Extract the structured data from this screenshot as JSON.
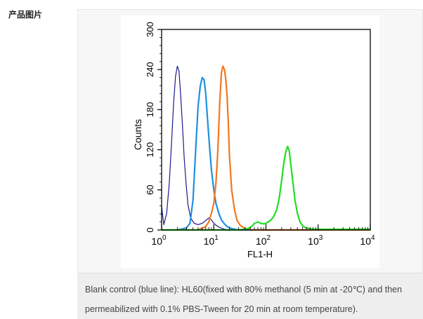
{
  "section_label": "产品图片",
  "caption": "Blank control (blue line): HL60(fixed with 80% methanol (5 min at -20℃) and then permeabilized with 0.1% PBS-Tween for 20 min at room temperature).",
  "chart_data": {
    "type": "line",
    "title": "",
    "xlabel": "FL1-H",
    "ylabel": "Counts",
    "xscale": "log",
    "xlim": [
      1,
      10000
    ],
    "ylim": [
      0,
      300
    ],
    "x_ticks": [
      {
        "base": "10",
        "exp": "0"
      },
      {
        "base": "10",
        "exp": "1"
      },
      {
        "base": "10",
        "exp": "2"
      },
      {
        "base": "10",
        "exp": "3"
      },
      {
        "base": "10",
        "exp": "4"
      }
    ],
    "y_ticks": [
      "0",
      "60",
      "120",
      "180",
      "240",
      "300"
    ],
    "grid": false,
    "legend": "none",
    "series": [
      {
        "color": "#1a1a8c",
        "stroke": 1.2,
        "x": [
          1,
          1.1,
          1.25,
          1.4,
          1.55,
          1.7,
          1.85,
          2.0,
          2.15,
          2.3,
          2.5,
          2.7,
          2.95,
          3.2,
          3.6,
          4.2,
          5.0,
          6.0,
          7.0,
          8.0,
          9.0,
          10.0,
          11.5,
          13.5,
          16.0,
          20.0,
          30.0,
          50.0,
          100.0,
          10000.0
        ],
        "y": [
          35,
          8,
          25,
          70,
          130,
          190,
          230,
          245,
          238,
          205,
          160,
          110,
          68,
          38,
          18,
          10,
          8,
          10,
          14,
          18,
          15,
          10,
          6,
          3,
          1,
          0,
          0,
          0,
          0,
          0
        ]
      },
      {
        "color": "#1e90e0",
        "stroke": 2.2,
        "x": [
          1,
          2.0,
          3.0,
          3.5,
          4.0,
          4.5,
          5.0,
          5.5,
          6.0,
          6.5,
          7.0,
          7.6,
          8.3,
          9.0,
          10.0,
          11.0,
          12.5,
          14.0,
          16.0,
          18.0,
          22.0,
          30.0,
          50.0,
          10000.0
        ],
        "y": [
          0,
          0,
          3,
          10,
          45,
          120,
          185,
          215,
          228,
          225,
          205,
          165,
          125,
          90,
          60,
          40,
          25,
          15,
          9,
          5,
          2,
          0,
          0,
          0
        ]
      },
      {
        "color": "#f07820",
        "stroke": 2.2,
        "x": [
          1,
          5.0,
          7.0,
          8.0,
          9.0,
          10.0,
          11.0,
          12.0,
          13.0,
          14.0,
          15.0,
          16.0,
          17.0,
          18.0,
          19.0,
          20.0,
          22.0,
          25.0,
          28.0,
          32.0,
          38.0,
          45.0,
          55.0,
          70.0,
          10000.0
        ],
        "y": [
          0,
          0,
          5,
          12,
          25,
          40,
          70,
          120,
          190,
          235,
          245,
          240,
          225,
          200,
          160,
          110,
          60,
          30,
          14,
          7,
          3,
          1,
          0,
          0,
          0
        ]
      },
      {
        "color": "#22dd22",
        "stroke": 2.2,
        "x": [
          1,
          30.0,
          45.0,
          55.0,
          60.0,
          70.0,
          80.0,
          90.0,
          100.0,
          110.0,
          125.0,
          140.0,
          160.0,
          180.0,
          200.0,
          220.0,
          240.0,
          260.0,
          280.0,
          300.0,
          330.0,
          360.0,
          400.0,
          450.0,
          520.0,
          600.0,
          700.0,
          800.0,
          10000.0
        ],
        "y": [
          0,
          0,
          2,
          6,
          10,
          12,
          10,
          9,
          10,
          12,
          15,
          20,
          30,
          48,
          75,
          100,
          117,
          125,
          118,
          98,
          70,
          45,
          25,
          12,
          5,
          3,
          2,
          1,
          1
        ]
      }
    ]
  }
}
